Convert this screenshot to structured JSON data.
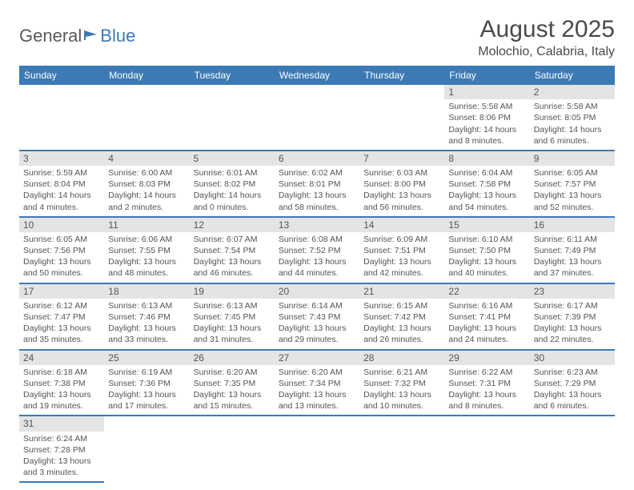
{
  "logo": {
    "text1": "General",
    "text2": "Blue"
  },
  "title": "August 2025",
  "location": "Molochio, Calabria, Italy",
  "colors": {
    "header_bg": "#3c7ab5",
    "header_text": "#ffffff",
    "daynum_bg": "#e4e4e4",
    "text": "#545454"
  },
  "day_headers": [
    "Sunday",
    "Monday",
    "Tuesday",
    "Wednesday",
    "Thursday",
    "Friday",
    "Saturday"
  ],
  "weeks": [
    [
      null,
      null,
      null,
      null,
      null,
      {
        "n": "1",
        "sr": "Sunrise: 5:58 AM",
        "ss": "Sunset: 8:06 PM",
        "dl": "Daylight: 14 hours and 8 minutes."
      },
      {
        "n": "2",
        "sr": "Sunrise: 5:58 AM",
        "ss": "Sunset: 8:05 PM",
        "dl": "Daylight: 14 hours and 6 minutes."
      }
    ],
    [
      {
        "n": "3",
        "sr": "Sunrise: 5:59 AM",
        "ss": "Sunset: 8:04 PM",
        "dl": "Daylight: 14 hours and 4 minutes."
      },
      {
        "n": "4",
        "sr": "Sunrise: 6:00 AM",
        "ss": "Sunset: 8:03 PM",
        "dl": "Daylight: 14 hours and 2 minutes."
      },
      {
        "n": "5",
        "sr": "Sunrise: 6:01 AM",
        "ss": "Sunset: 8:02 PM",
        "dl": "Daylight: 14 hours and 0 minutes."
      },
      {
        "n": "6",
        "sr": "Sunrise: 6:02 AM",
        "ss": "Sunset: 8:01 PM",
        "dl": "Daylight: 13 hours and 58 minutes."
      },
      {
        "n": "7",
        "sr": "Sunrise: 6:03 AM",
        "ss": "Sunset: 8:00 PM",
        "dl": "Daylight: 13 hours and 56 minutes."
      },
      {
        "n": "8",
        "sr": "Sunrise: 6:04 AM",
        "ss": "Sunset: 7:58 PM",
        "dl": "Daylight: 13 hours and 54 minutes."
      },
      {
        "n": "9",
        "sr": "Sunrise: 6:05 AM",
        "ss": "Sunset: 7:57 PM",
        "dl": "Daylight: 13 hours and 52 minutes."
      }
    ],
    [
      {
        "n": "10",
        "sr": "Sunrise: 6:05 AM",
        "ss": "Sunset: 7:56 PM",
        "dl": "Daylight: 13 hours and 50 minutes."
      },
      {
        "n": "11",
        "sr": "Sunrise: 6:06 AM",
        "ss": "Sunset: 7:55 PM",
        "dl": "Daylight: 13 hours and 48 minutes."
      },
      {
        "n": "12",
        "sr": "Sunrise: 6:07 AM",
        "ss": "Sunset: 7:54 PM",
        "dl": "Daylight: 13 hours and 46 minutes."
      },
      {
        "n": "13",
        "sr": "Sunrise: 6:08 AM",
        "ss": "Sunset: 7:52 PM",
        "dl": "Daylight: 13 hours and 44 minutes."
      },
      {
        "n": "14",
        "sr": "Sunrise: 6:09 AM",
        "ss": "Sunset: 7:51 PM",
        "dl": "Daylight: 13 hours and 42 minutes."
      },
      {
        "n": "15",
        "sr": "Sunrise: 6:10 AM",
        "ss": "Sunset: 7:50 PM",
        "dl": "Daylight: 13 hours and 40 minutes."
      },
      {
        "n": "16",
        "sr": "Sunrise: 6:11 AM",
        "ss": "Sunset: 7:49 PM",
        "dl": "Daylight: 13 hours and 37 minutes."
      }
    ],
    [
      {
        "n": "17",
        "sr": "Sunrise: 6:12 AM",
        "ss": "Sunset: 7:47 PM",
        "dl": "Daylight: 13 hours and 35 minutes."
      },
      {
        "n": "18",
        "sr": "Sunrise: 6:13 AM",
        "ss": "Sunset: 7:46 PM",
        "dl": "Daylight: 13 hours and 33 minutes."
      },
      {
        "n": "19",
        "sr": "Sunrise: 6:13 AM",
        "ss": "Sunset: 7:45 PM",
        "dl": "Daylight: 13 hours and 31 minutes."
      },
      {
        "n": "20",
        "sr": "Sunrise: 6:14 AM",
        "ss": "Sunset: 7:43 PM",
        "dl": "Daylight: 13 hours and 29 minutes."
      },
      {
        "n": "21",
        "sr": "Sunrise: 6:15 AM",
        "ss": "Sunset: 7:42 PM",
        "dl": "Daylight: 13 hours and 26 minutes."
      },
      {
        "n": "22",
        "sr": "Sunrise: 6:16 AM",
        "ss": "Sunset: 7:41 PM",
        "dl": "Daylight: 13 hours and 24 minutes."
      },
      {
        "n": "23",
        "sr": "Sunrise: 6:17 AM",
        "ss": "Sunset: 7:39 PM",
        "dl": "Daylight: 13 hours and 22 minutes."
      }
    ],
    [
      {
        "n": "24",
        "sr": "Sunrise: 6:18 AM",
        "ss": "Sunset: 7:38 PM",
        "dl": "Daylight: 13 hours and 19 minutes."
      },
      {
        "n": "25",
        "sr": "Sunrise: 6:19 AM",
        "ss": "Sunset: 7:36 PM",
        "dl": "Daylight: 13 hours and 17 minutes."
      },
      {
        "n": "26",
        "sr": "Sunrise: 6:20 AM",
        "ss": "Sunset: 7:35 PM",
        "dl": "Daylight: 13 hours and 15 minutes."
      },
      {
        "n": "27",
        "sr": "Sunrise: 6:20 AM",
        "ss": "Sunset: 7:34 PM",
        "dl": "Daylight: 13 hours and 13 minutes."
      },
      {
        "n": "28",
        "sr": "Sunrise: 6:21 AM",
        "ss": "Sunset: 7:32 PM",
        "dl": "Daylight: 13 hours and 10 minutes."
      },
      {
        "n": "29",
        "sr": "Sunrise: 6:22 AM",
        "ss": "Sunset: 7:31 PM",
        "dl": "Daylight: 13 hours and 8 minutes."
      },
      {
        "n": "30",
        "sr": "Sunrise: 6:23 AM",
        "ss": "Sunset: 7:29 PM",
        "dl": "Daylight: 13 hours and 6 minutes."
      }
    ],
    [
      {
        "n": "31",
        "sr": "Sunrise: 6:24 AM",
        "ss": "Sunset: 7:28 PM",
        "dl": "Daylight: 13 hours and 3 minutes."
      },
      null,
      null,
      null,
      null,
      null,
      null
    ]
  ]
}
